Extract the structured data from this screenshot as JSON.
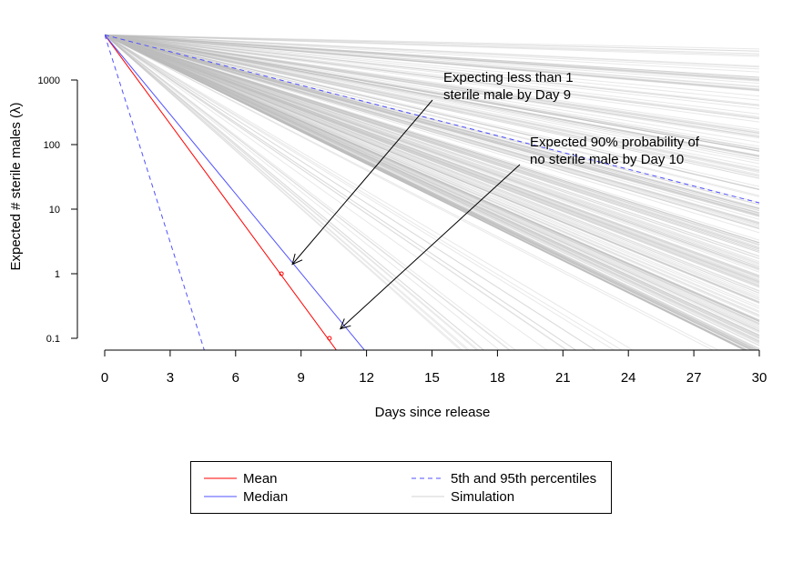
{
  "chart_data": {
    "type": "line",
    "title": "",
    "xlabel": "Days since release",
    "ylabel": "Expected # sterile males (λ)",
    "x_scale": "linear",
    "y_scale": "log",
    "xlim": [
      0,
      30
    ],
    "ylim": [
      0.06,
      5000
    ],
    "x_ticks": [
      0,
      3,
      6,
      9,
      12,
      15,
      18,
      21,
      24,
      27,
      30
    ],
    "x_tick_labels": [
      "0",
      "3",
      "6",
      "9",
      "12",
      "15",
      "18",
      "21",
      "24",
      "27",
      "30"
    ],
    "y_ticks": [
      0.1,
      1,
      10,
      100,
      1000
    ],
    "y_tick_labels": [
      "0.1",
      "1",
      "10",
      "100",
      "1000"
    ],
    "grid": false,
    "legend_position": "bottom",
    "start_value": 5000,
    "series": [
      {
        "name": "Mean",
        "color": "#ff0000",
        "style": "solid",
        "x": [
          0,
          10.7
        ],
        "y": [
          5000,
          0.06
        ]
      },
      {
        "name": "Median",
        "color": "#5050ff",
        "style": "solid",
        "x": [
          0,
          12
        ],
        "y": [
          5000,
          0.06
        ]
      },
      {
        "name": "5th and 95th percentiles",
        "color": "#5050ff",
        "style": "dashed",
        "lines": [
          {
            "x": [
              0,
              4.6
            ],
            "y": [
              5000,
              0.06
            ]
          },
          {
            "x": [
              0,
              30
            ],
            "y": [
              5000,
              12.5
            ]
          }
        ]
      },
      {
        "name": "Simulation",
        "color": "#bebebe",
        "style": "solid",
        "end_values_at_day_30": [
          3,
          8,
          0.5,
          20,
          60,
          150,
          400,
          1100,
          2800,
          0.9,
          5,
          30,
          80,
          250
        ]
      }
    ],
    "points": [
      {
        "x": 8.1,
        "y": 1,
        "color": "#ff0000"
      },
      {
        "x": 10.3,
        "y": 0.1,
        "color": "#ff0000"
      }
    ],
    "annotations": [
      {
        "lines": [
          "Expecting less than 1",
          "sterile male by Day 9"
        ],
        "x_target": 8.6,
        "y_target": 1.4
      },
      {
        "lines": [
          "Expected 90% probability of",
          "no sterile male by Day 10"
        ],
        "x_target": 10.8,
        "y_target": 0.14
      }
    ]
  },
  "legend": {
    "items": [
      {
        "label": "Mean",
        "color": "#ff0000",
        "style": "solid"
      },
      {
        "label": "Median",
        "color": "#5050ff",
        "style": "solid"
      },
      {
        "label": "5th and 95th percentiles",
        "color": "#5050ff",
        "style": "dashed"
      },
      {
        "label": "Simulation",
        "color": "#d3d3d3",
        "style": "solid"
      }
    ]
  }
}
